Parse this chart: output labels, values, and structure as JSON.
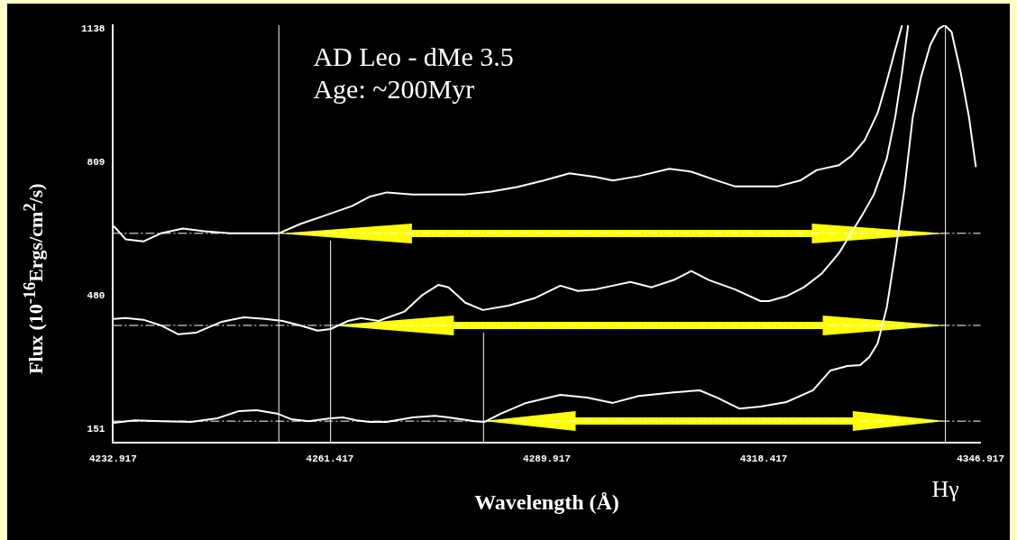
{
  "chart_data": {
    "type": "line",
    "xlabel": "Wavelength (Å)",
    "ylabel": "Flux (10$^{-16}$Ergs/cm$^{2}$/s)",
    "annotations": [
      "AD Leo - dMe 3.5",
      "Age: ~200Myr"
    ],
    "xlim": [
      4232.917,
      4346.917
    ],
    "xticks": [
      4232.917,
      4261.417,
      4289.917,
      4318.417,
      4346.917
    ],
    "ylim": [
      118,
      1147
    ],
    "yticks": [
      151,
      480,
      809,
      1138
    ],
    "grid": false,
    "legend": false,
    "marker": "none",
    "line_style": "solid",
    "ref_lines": [
      {
        "axis": "x",
        "value": 4254.7,
        "color": "#ffffff"
      },
      {
        "axis": "x",
        "value": 4261.5,
        "color": "#ffffff"
      },
      {
        "axis": "x",
        "value": 4281.6,
        "color": "#ffffff"
      },
      {
        "axis": "x",
        "value": 4342.3,
        "label": "Hγ",
        "color": "#ffffff"
      },
      {
        "axis": "y",
        "value": 634,
        "color": "#ffffff",
        "line_style": "dashed"
      },
      {
        "axis": "y",
        "value": 407,
        "color": "#ffffff",
        "line_style": "dashed"
      },
      {
        "axis": "y",
        "value": 171,
        "color": "#ffffff",
        "line_style": "dashed"
      }
    ],
    "series": [
      {
        "color": "#ffffff",
        "x": [
          4233.0,
          4234.6,
          4236.9,
          4239.2,
          4242.1,
          4244.9,
          4248.3,
          4254.7,
          4257.5,
          4260.9,
          4264.3,
          4266.6,
          4268.9,
          4272.3,
          4275.7,
          4279.2,
          4282.6,
          4286.0,
          4289.5,
          4292.9,
          4296.3,
          4298.6,
          4302.0,
          4306.0,
          4308.9,
          4312.3,
          4314.6,
          4318.0,
          4320.3,
          4323.2,
          4325.4,
          4328.3,
          4330.0,
          4331.7,
          4333.4,
          4334.6,
          4335.7,
          4336.6
        ],
        "values": [
          652,
          619,
          614,
          634,
          646,
          639,
          634,
          634,
          657,
          679,
          701,
          724,
          735,
          730,
          730,
          730,
          737,
          748,
          764,
          782,
          773,
          764,
          775,
          793,
          786,
          764,
          750,
          750,
          750,
          764,
          790,
          802,
          826,
          864,
          931,
          1009,
          1087,
          1147
        ]
      },
      {
        "color": "#ffffff",
        "x": [
          4233.0,
          4234.6,
          4236.9,
          4239.2,
          4241.5,
          4243.8,
          4247.2,
          4250.1,
          4252.9,
          4255.2,
          4257.5,
          4259.8,
          4261.5,
          4263.8,
          4265.5,
          4267.8,
          4271.2,
          4273.5,
          4275.7,
          4277.0,
          4279.2,
          4281.5,
          4284.9,
          4288.3,
          4291.7,
          4294.0,
          4296.3,
          4298.6,
          4300.9,
          4303.7,
          4306.6,
          4308.9,
          4311.2,
          4314.6,
          4318.0,
          4319.1,
          4321.4,
          4323.7,
          4326.0,
          4328.3,
          4331.4,
          4332.9,
          4334.6,
          4335.7,
          4336.6,
          4337.4
        ],
        "values": [
          423,
          425,
          421,
          407,
          385,
          389,
          416,
          427,
          423,
          418,
          407,
          394,
          398,
          418,
          425,
          418,
          441,
          481,
          507,
          501,
          463,
          445,
          456,
          474,
          505,
          492,
          496,
          505,
          514,
          501,
          519,
          541,
          519,
          496,
          467,
          467,
          479,
          501,
          534,
          585,
          680,
          730,
          819,
          920,
          1031,
          1147
        ]
      },
      {
        "color": "#ffffff",
        "x": [
          4233.0,
          4235.8,
          4239.2,
          4243.2,
          4246.6,
          4249.5,
          4251.8,
          4254.6,
          4256.3,
          4258.6,
          4261.5,
          4263.2,
          4264.9,
          4266.6,
          4268.9,
          4272.3,
          4275.2,
          4277.0,
          4280.4,
          4281.7,
          4283.8,
          4287.2,
          4291.7,
          4295.2,
          4298.6,
          4302.0,
          4306.6,
          4310.0,
          4312.3,
          4315.2,
          4318.0,
          4321.4,
          4324.9,
          4327.2,
          4329.4,
          4331.1,
          4332.3,
          4333.4,
          4334.6,
          4335.7,
          4336.9,
          4338.0,
          4339.1,
          4340.3,
          4341.4,
          4342.2,
          4343.1,
          4344.3,
          4345.4,
          4346.3
        ],
        "values": [
          167,
          173,
          171,
          169,
          178,
          196,
          198,
          189,
          176,
          171,
          178,
          180,
          173,
          169,
          169,
          180,
          184,
          180,
          171,
          169,
          189,
          216,
          236,
          229,
          216,
          233,
          242,
          247,
          229,
          202,
          207,
          218,
          247,
          296,
          307,
          309,
          329,
          363,
          452,
          585,
          741,
          920,
          1020,
          1098,
          1138,
          1147,
          1131,
          1031,
          920,
          797
        ]
      }
    ]
  }
}
